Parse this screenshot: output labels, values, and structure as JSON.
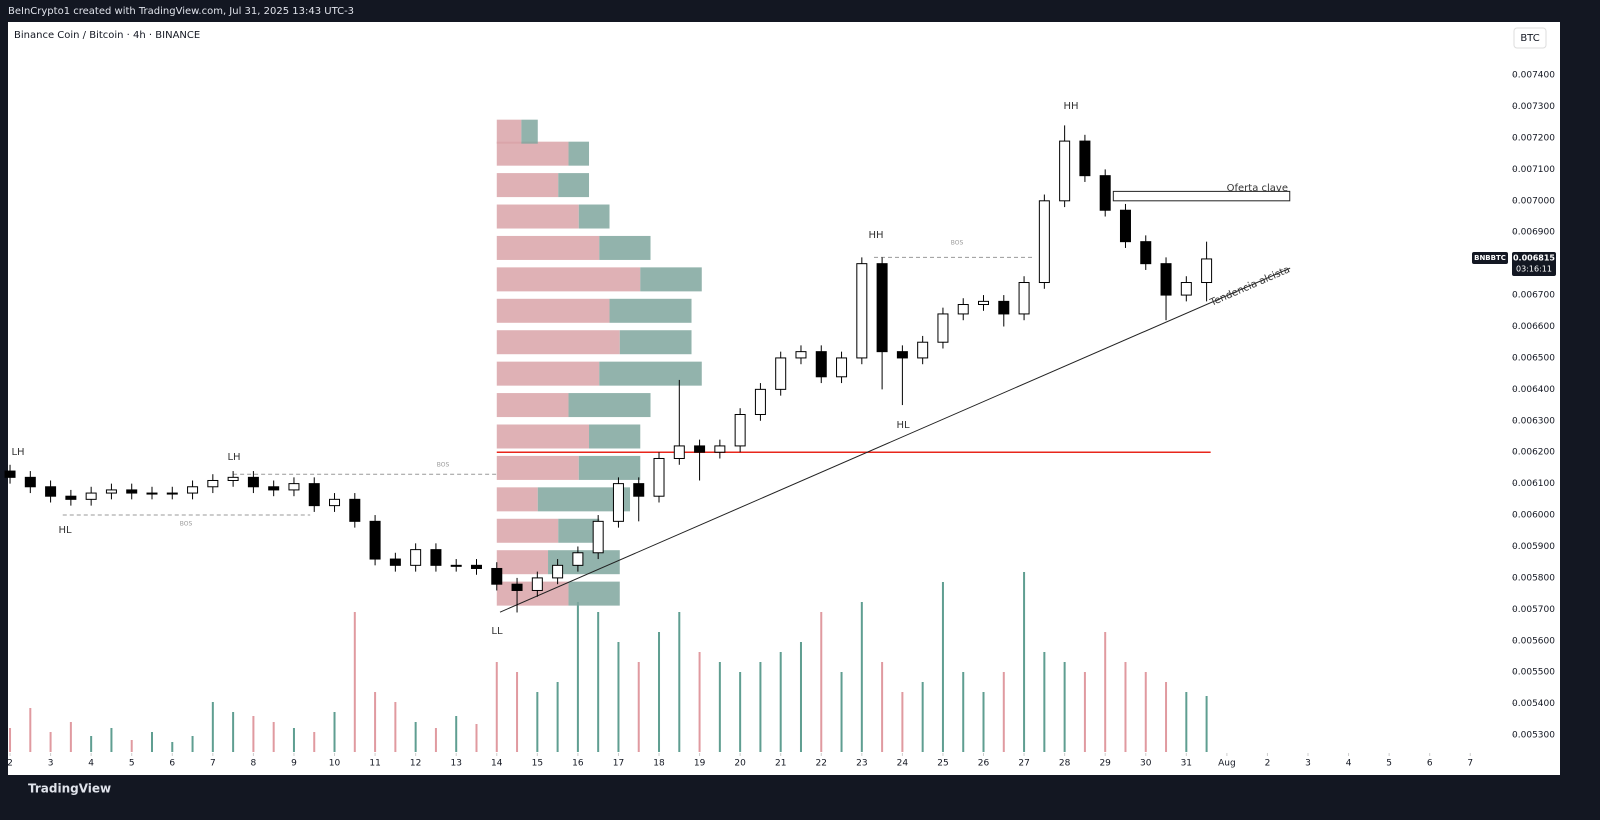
{
  "header": {
    "credit": "BeInCrypto1 created with TradingView.com, Jul 31, 2025 13:43 UTC-3",
    "logo": "TradingView"
  },
  "chart_data": {
    "type": "candlestick",
    "title": "Binance Coin / Bitcoin · 4h · BINANCE",
    "currency_button": "BTC",
    "symbol": "BNBBTC",
    "countdown": "03:16:11",
    "xlim": [
      1.95,
      38.98
    ],
    "ylim": [
      0.005246,
      0.007569
    ],
    "xticks": [
      2,
      3,
      4,
      5,
      6,
      7,
      8,
      9,
      10,
      11,
      12,
      13,
      14,
      15,
      16,
      17,
      18,
      19,
      20,
      21,
      22,
      23,
      24,
      25,
      26,
      27,
      28,
      29,
      30,
      31,
      {
        "value": 32,
        "label": "Aug"
      },
      {
        "value": 33,
        "label": "2"
      },
      {
        "value": 34,
        "label": "3"
      },
      {
        "value": 35,
        "label": "4"
      },
      {
        "value": 36,
        "label": "5"
      },
      {
        "value": 37,
        "label": "6"
      },
      {
        "value": 38,
        "label": "7"
      }
    ],
    "yticks": [
      {
        "value": 0.0053,
        "label": "0.005300"
      },
      {
        "value": 0.0054,
        "label": "0.005400"
      },
      {
        "value": 0.0055,
        "label": "0.005500"
      },
      {
        "value": 0.0056,
        "label": "0.005600"
      },
      {
        "value": 0.0057,
        "label": "0.005700"
      },
      {
        "value": 0.0058,
        "label": "0.005800"
      },
      {
        "value": 0.0059,
        "label": "0.005900"
      },
      {
        "value": 0.006,
        "label": "0.006000"
      },
      {
        "value": 0.0061,
        "label": "0.006100"
      },
      {
        "value": 0.0062,
        "label": "0.006200"
      },
      {
        "value": 0.0063,
        "label": "0.006300"
      },
      {
        "value": 0.0064,
        "label": "0.006400"
      },
      {
        "value": 0.0065,
        "label": "0.006500"
      },
      {
        "value": 0.0066,
        "label": "0.006600"
      },
      {
        "value": 0.0067,
        "label": "0.006700"
      },
      {
        "value": 0.0068,
        "label": "0.006800"
      },
      {
        "value": 0.0069,
        "label": "0.006900"
      },
      {
        "value": 0.007,
        "label": "0.007000"
      },
      {
        "value": 0.0071,
        "label": "0.007100"
      },
      {
        "value": 0.0072,
        "label": "0.007200"
      },
      {
        "value": 0.0073,
        "label": "0.007300"
      },
      {
        "value": 0.0074,
        "label": "0.007400"
      }
    ],
    "x": [
      2,
      2.5,
      3,
      3.5,
      4,
      4.5,
      5,
      5.5,
      6,
      6.5,
      7,
      7.5,
      8,
      8.5,
      9,
      9.5,
      10,
      10.5,
      11,
      11.5,
      12,
      12.5,
      13,
      13.5,
      14,
      14.5,
      15,
      15.5,
      16,
      16.5,
      17,
      17.5,
      18,
      18.5,
      19,
      19.5,
      20,
      20.5,
      21,
      21.5,
      22,
      22.5,
      23,
      23.5,
      24,
      24.5,
      25,
      25.5,
      26,
      26.5,
      27,
      27.5,
      28,
      28.5,
      29,
      29.5,
      30,
      30.5,
      31,
      31.5
    ],
    "open": [
      0.00614,
      0.00612,
      0.00609,
      0.00606,
      0.00605,
      0.00607,
      0.00608,
      0.00607,
      0.00607,
      0.00607,
      0.00609,
      0.00611,
      0.00612,
      0.00609,
      0.00608,
      0.0061,
      0.00603,
      0.00605,
      0.00598,
      0.00586,
      0.00584,
      0.00589,
      0.00584,
      0.00584,
      0.00583,
      0.00578,
      0.00576,
      0.0058,
      0.00584,
      0.00588,
      0.00598,
      0.0061,
      0.00606,
      0.00618,
      0.00622,
      0.0062,
      0.00622,
      0.00632,
      0.0064,
      0.0065,
      0.00652,
      0.00644,
      0.0065,
      0.0068,
      0.00652,
      0.0065,
      0.00655,
      0.00664,
      0.00667,
      0.00668,
      0.00664,
      0.00674,
      0.007,
      0.00719,
      0.00708,
      0.00697,
      0.00687,
      0.0068,
      0.0067,
      0.00674
    ],
    "high": [
      0.00616,
      0.00614,
      0.00611,
      0.00608,
      0.00609,
      0.0061,
      0.0061,
      0.00609,
      0.00609,
      0.00611,
      0.00613,
      0.00614,
      0.00614,
      0.00611,
      0.00612,
      0.00612,
      0.00607,
      0.00607,
      0.006,
      0.00588,
      0.00591,
      0.00591,
      0.00586,
      0.00586,
      0.00585,
      0.0058,
      0.00582,
      0.00586,
      0.0059,
      0.006,
      0.00612,
      0.00612,
      0.0062,
      0.00643,
      0.00624,
      0.00624,
      0.00634,
      0.00642,
      0.00652,
      0.00654,
      0.00654,
      0.00652,
      0.00682,
      0.00682,
      0.00654,
      0.00657,
      0.00666,
      0.00669,
      0.0067,
      0.0067,
      0.00676,
      0.00702,
      0.00724,
      0.00721,
      0.0071,
      0.00699,
      0.00689,
      0.00682,
      0.00676,
      0.00687
    ],
    "low": [
      0.0061,
      0.00607,
      0.00604,
      0.00603,
      0.00603,
      0.00605,
      0.00605,
      0.00605,
      0.00605,
      0.00605,
      0.00607,
      0.00609,
      0.00607,
      0.00606,
      0.00606,
      0.00601,
      0.00601,
      0.00596,
      0.00584,
      0.00582,
      0.00582,
      0.00582,
      0.00582,
      0.00581,
      0.00576,
      0.00569,
      0.00574,
      0.00578,
      0.00582,
      0.00586,
      0.00596,
      0.00598,
      0.00604,
      0.00616,
      0.00611,
      0.00618,
      0.0062,
      0.0063,
      0.00638,
      0.00648,
      0.00642,
      0.00642,
      0.00648,
      0.0064,
      0.00635,
      0.00648,
      0.00653,
      0.00662,
      0.00665,
      0.0066,
      0.00662,
      0.00672,
      0.00698,
      0.00706,
      0.00695,
      0.00685,
      0.00678,
      0.00662,
      0.00668,
      0.00668
    ],
    "close": [
      0.00612,
      0.00609,
      0.00606,
      0.00605,
      0.00607,
      0.00608,
      0.00607,
      0.00607,
      0.00607,
      0.00609,
      0.00611,
      0.00612,
      0.00609,
      0.00608,
      0.0061,
      0.00603,
      0.00605,
      0.00598,
      0.00586,
      0.00584,
      0.00589,
      0.00584,
      0.00584,
      0.00583,
      0.00578,
      0.00576,
      0.0058,
      0.00584,
      0.00588,
      0.00598,
      0.0061,
      0.00606,
      0.00618,
      0.00622,
      0.0062,
      0.00622,
      0.00632,
      0.0064,
      0.0065,
      0.00652,
      0.00644,
      0.0065,
      0.0068,
      0.00652,
      0.0065,
      0.00655,
      0.00664,
      0.00667,
      0.00668,
      0.00664,
      0.00674,
      0.007,
      0.00719,
      0.00708,
      0.00697,
      0.00687,
      0.0068,
      0.0067,
      0.00674,
      0.006815
    ],
    "volume": [
      12,
      22,
      10,
      15,
      8,
      12,
      6,
      10,
      5,
      8,
      25,
      20,
      18,
      15,
      12,
      10,
      20,
      70,
      30,
      25,
      15,
      12,
      18,
      14,
      45,
      40,
      30,
      35,
      75,
      70,
      55,
      45,
      60,
      70,
      50,
      45,
      40,
      45,
      50,
      55,
      70,
      40,
      75,
      45,
      30,
      35,
      85,
      40,
      30,
      40,
      90,
      50,
      45,
      40,
      60,
      45,
      40,
      35,
      30,
      28
    ],
    "volume_ylim": [
      0,
      100
    ],
    "up_color": "#ffffff",
    "down_color": "#000000",
    "volume_up_color": "#5f9e91",
    "volume_down_color": "#e09aa0",
    "volume_profile": {
      "start_x": 14,
      "xlim": [
        0,
        100
      ],
      "prices": [
        0.00575,
        0.00585,
        0.00595,
        0.00605,
        0.00615,
        0.00625,
        0.00635,
        0.00645,
        0.00655,
        0.00665,
        0.00675,
        0.00685,
        0.00695,
        0.00705,
        0.00715,
        0.00722
      ],
      "up": [
        25,
        35,
        20,
        45,
        30,
        25,
        40,
        50,
        35,
        40,
        30,
        25,
        15,
        15,
        10,
        8
      ],
      "down": [
        35,
        25,
        30,
        20,
        40,
        45,
        35,
        50,
        60,
        55,
        70,
        50,
        40,
        30,
        35,
        12
      ],
      "up_color": "#7fa69e",
      "down_color": "#d9a3a8"
    },
    "level": {
      "value": 0.0062,
      "x": [
        14,
        31.6
      ],
      "color": "#e8261b"
    },
    "trendline": {
      "x": [
        14.08,
        33.56
      ],
      "y": [
        0.005691,
        0.006786
      ],
      "label": "Tendencia alcista"
    },
    "zone": {
      "label": "Oferta clave",
      "x": [
        29.2,
        33.55
      ],
      "y": [
        0.007,
        0.00703
      ]
    },
    "bos_lines": [
      {
        "label": "BOS",
        "value": 0.00613,
        "x": [
          7.5,
          14
        ]
      },
      {
        "label": "BOS",
        "value": 0.006,
        "x": [
          3.3,
          9.4
        ]
      },
      {
        "label": "BOS",
        "value": 0.00682,
        "x": [
          23.3,
          27.2
        ]
      }
    ],
    "annotations": [
      "LH",
      "LH",
      "HL",
      "LL",
      "HH",
      "HL",
      "HH"
    ]
  }
}
